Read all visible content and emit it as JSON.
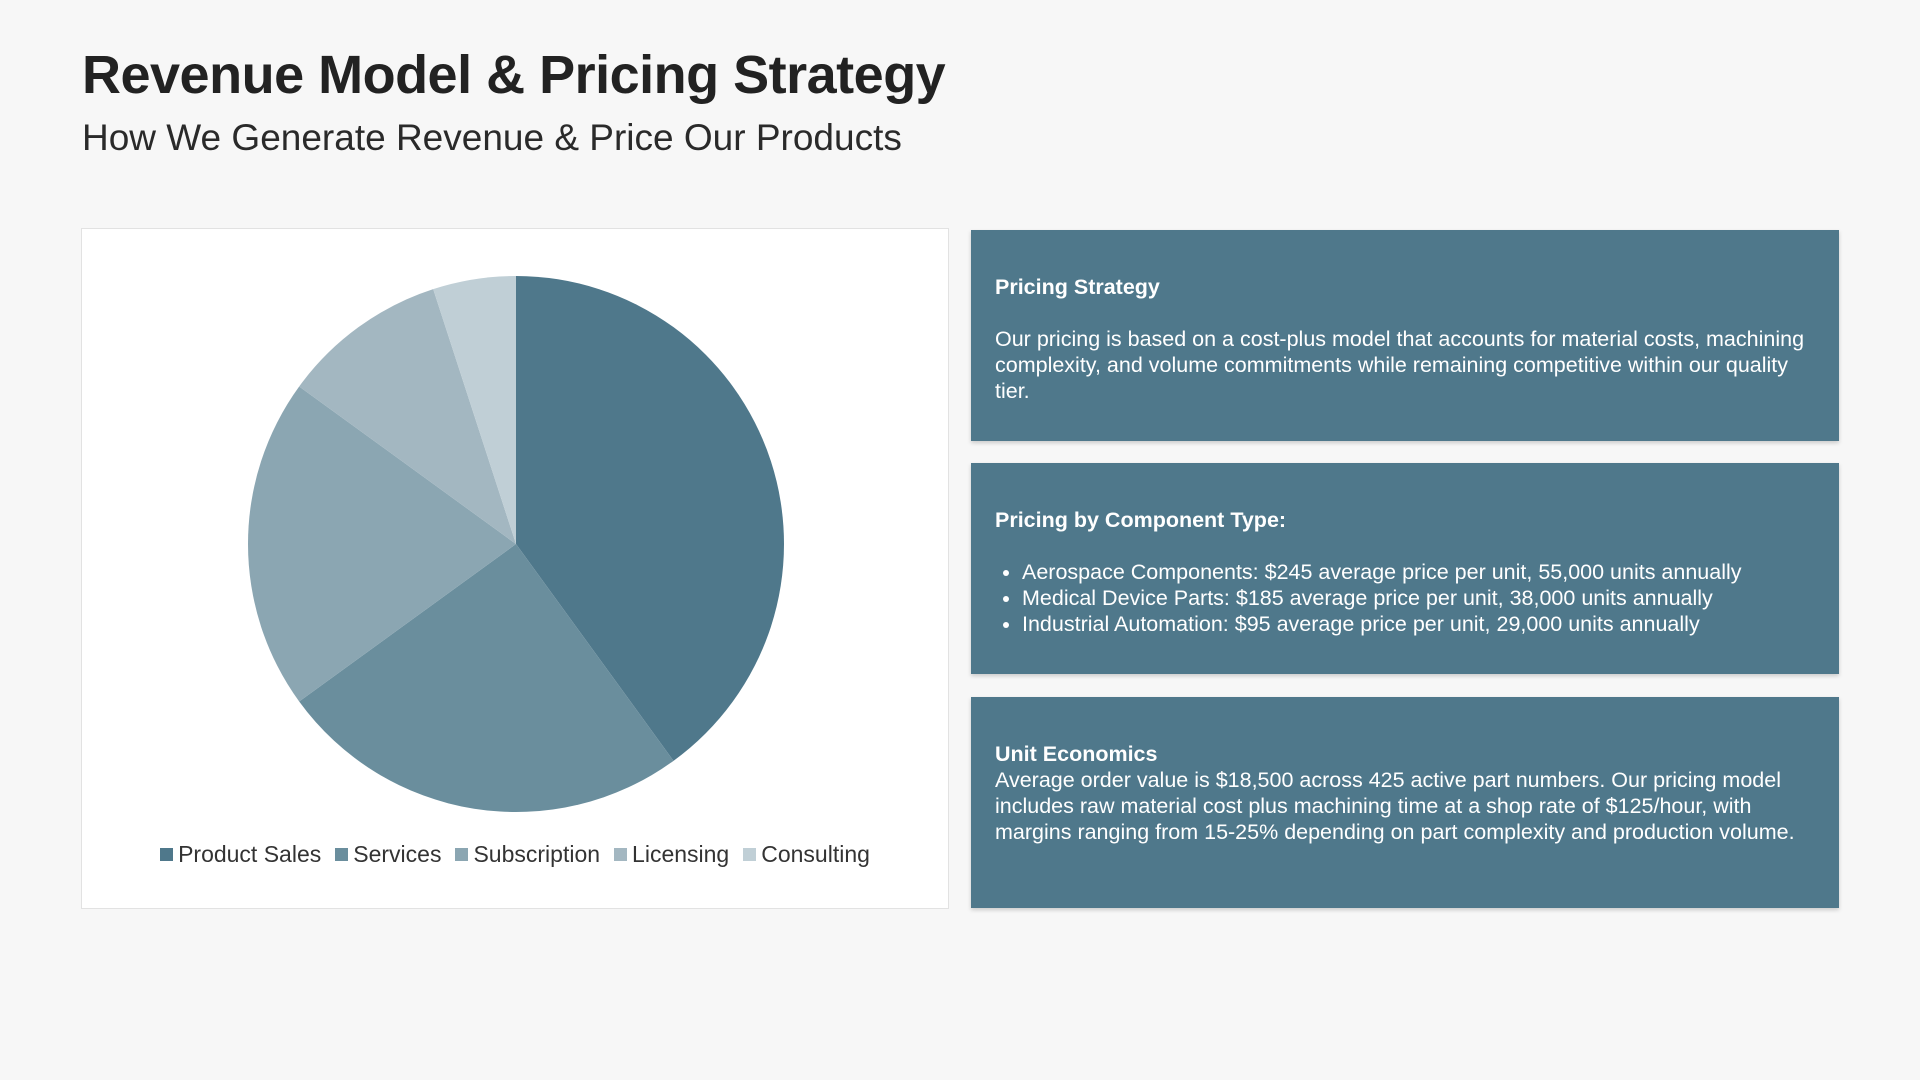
{
  "header": {
    "title": "Revenue Model & Pricing Strategy",
    "subtitle": "How We Generate Revenue & Price Our Products"
  },
  "chart_data": {
    "type": "pie",
    "categories": [
      "Product Sales",
      "Services",
      "Subscription",
      "Licensing",
      "Consulting"
    ],
    "values": [
      40,
      25,
      20,
      10,
      5
    ],
    "colors": [
      "#4f788b",
      "#6a8e9d",
      "#8ba6b2",
      "#a3b7c1",
      "#c0cfd6"
    ],
    "start_angle_deg": 0,
    "direction": "clockwise",
    "legend_position": "bottom"
  },
  "cards": [
    {
      "heading": "Pricing Strategy",
      "text": "Our pricing is based on a cost-plus model that accounts for material costs, machining complexity, and volume commitments while remaining competitive within our quality tier."
    },
    {
      "heading": "Pricing by Component Type:",
      "items": [
        "Aerospace Components: $245 average price per unit, 55,000 units annually",
        "Medical Device Parts: $185 average price per unit, 38,000 units annually",
        "Industrial Automation: $95 average price per unit, 29,000 units annually"
      ]
    },
    {
      "heading": "Unit Economics",
      "text": "Average order value is $18,500 across 425 active part numbers. Our pricing model includes raw material cost plus machining time at a shop rate of $125/hour, with margins ranging from 15-25% depending on part complexity and production volume."
    }
  ]
}
